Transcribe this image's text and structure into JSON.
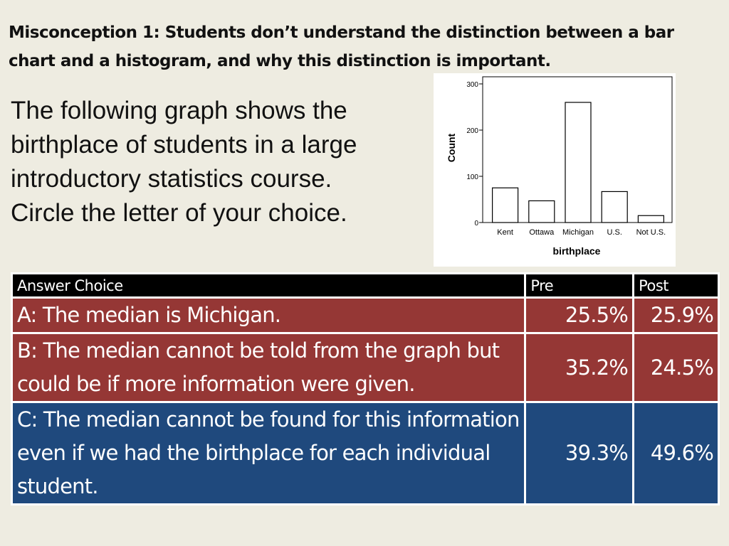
{
  "title": "Misconception 1: Students don’t understand the distinction between a bar chart and a histogram, and why this distinction is important.",
  "body_text": "The following graph shows the birthplace of students in a large introductory statistics course. Circle the letter of your choice.",
  "chart_data": {
    "type": "bar",
    "categories": [
      "Kent",
      "Ottawa",
      "Michigan",
      "U.S.",
      "Not U.S."
    ],
    "values": [
      75,
      47,
      260,
      67,
      15
    ],
    "xlabel": "birthplace",
    "ylabel": "Count",
    "yticks": [
      "0",
      "100",
      "200",
      "300"
    ],
    "ylim": [
      0,
      300
    ],
    "bar_fill": "#ffffff",
    "bar_stroke": "#000000",
    "grid": false
  },
  "table": {
    "headers": [
      "Answer Choice",
      "Pre",
      "Post"
    ],
    "rows": [
      {
        "choice": "A: The median is Michigan.",
        "pre": "25.5%",
        "post": "25.9%",
        "color": "#953735"
      },
      {
        "choice": "B: The median cannot be told from the graph but could be if more information were given.",
        "pre": "35.2%",
        "post": "24.5%",
        "color": "#953735"
      },
      {
        "choice": "C: The median cannot be found for this information even if we had the birthplace for each individual student.",
        "pre": "39.3%",
        "post": "49.6%",
        "color": "#1f497d"
      }
    ]
  },
  "colors": {
    "background": "#eeece1",
    "header_bg": "#000000",
    "wrong_answer": "#953735",
    "correct_answer": "#1f497d"
  }
}
